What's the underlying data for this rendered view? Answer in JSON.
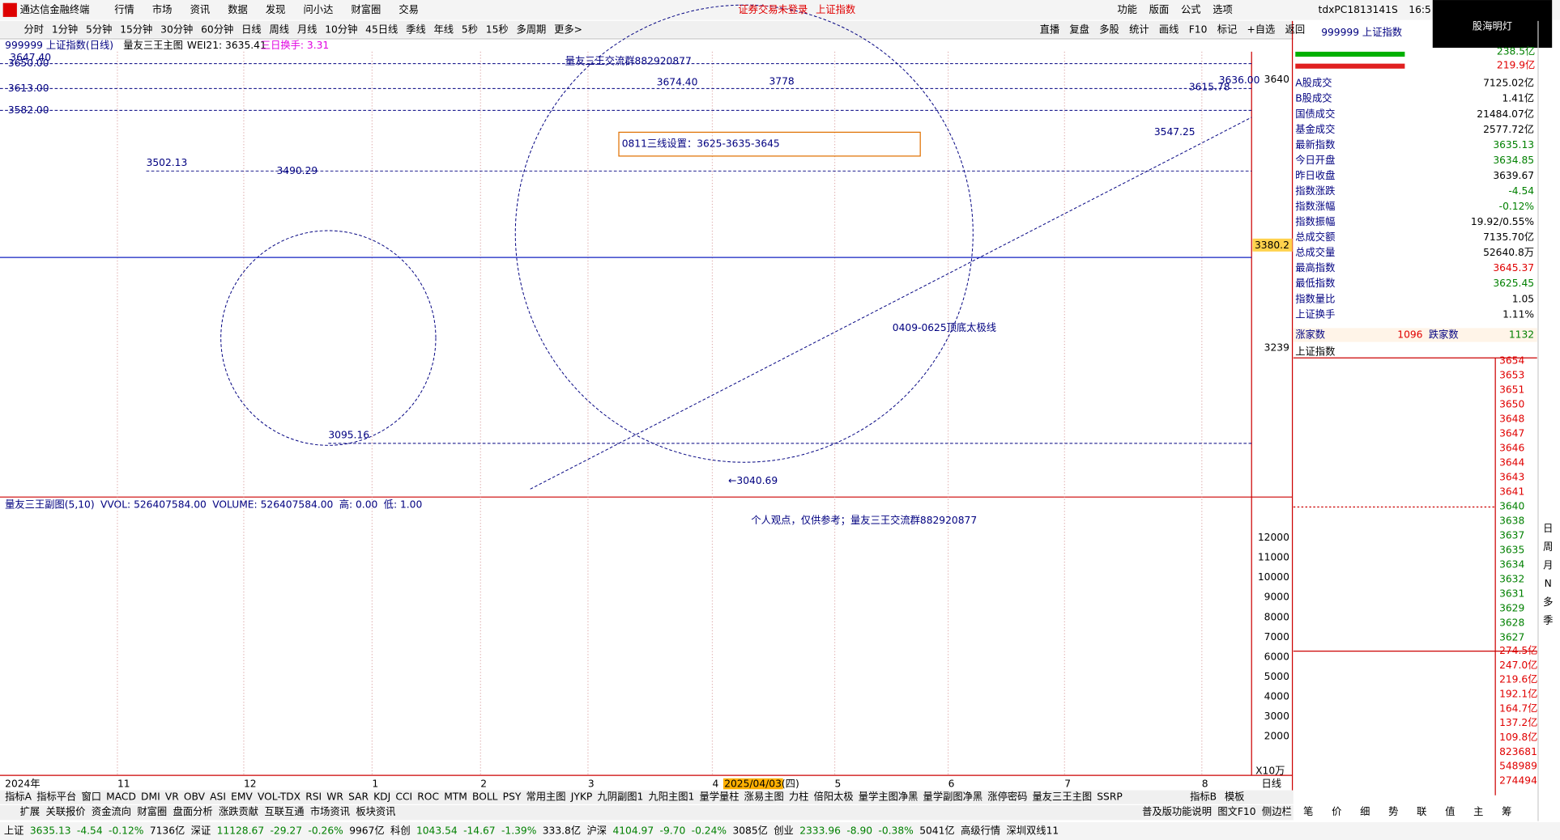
{
  "menu": {
    "app": "通达信金融终端",
    "items": [
      "行情",
      "市场",
      "资讯",
      "数据",
      "发现",
      "问小达",
      "财富圈",
      "交易"
    ],
    "notice": "证券交易未登录",
    "symbol": "上证指数",
    "right": [
      "功能",
      "版面",
      "公式",
      "选项"
    ],
    "pc": "tdxPC1813141S",
    "time": "16:5",
    "logo": "股海明灯"
  },
  "periods": [
    "分时",
    "1分钟",
    "5分钟",
    "15分钟",
    "30分钟",
    "60分钟",
    "日线",
    "周线",
    "月线",
    "10分钟",
    "45日线",
    "季线",
    "年线",
    "5秒",
    "15秒",
    "多周期",
    "更多>"
  ],
  "tools": [
    "直播",
    "复盘",
    "多股",
    "统计",
    "画线",
    "F10",
    "标记",
    "+自选",
    "返回"
  ],
  "chart": {
    "title": "999999 上证指数(日线)",
    "indicator": "量友三王主图",
    "wei": "WEI21: 3635.41",
    "turnover": "三日换手: 3.31",
    "group": "量友三王交流群882920877",
    "big1": "3674.40",
    "big2": "3778",
    "setting": "0811三线设置：3625-3635-3645",
    "taiji": "0409-0625顶底太极线",
    "levels": [
      "3650.00",
      "3613.00",
      "3582.00"
    ],
    "top_left": "3647.40",
    "points": [
      "3502.13",
      "3490.29",
      "3095.16",
      "←3040.69",
      "3547.25",
      "3615.78",
      "3636.00"
    ],
    "price_axis": [
      "3640",
      "3380.2",
      "3239"
    ]
  },
  "volume": {
    "header": [
      "量友三王副图(5,10)",
      "VVOL: 526407584.00",
      "VOLUME: 526407584.00",
      "高: 0.00",
      "低: 1.00"
    ],
    "note": "个人观点，仅供参考；量友三王交流群882920877",
    "axis": [
      "12000",
      "11000",
      "10000",
      "9000",
      "8000",
      "7000",
      "6000",
      "5000",
      "4000",
      "3000",
      "2000"
    ],
    "unit": "X10万"
  },
  "time_axis": [
    "2024年",
    "11",
    "12",
    "1",
    "2",
    "3",
    "4",
    "2025/04/03(四)",
    "5",
    "6",
    "7",
    "8"
  ],
  "time_unit": "日线",
  "tabs": [
    "指标A",
    "指标平台",
    "窗口",
    "MACD",
    "DMI",
    "VR",
    "OBV",
    "ASI",
    "EMV",
    "VOL-TDX",
    "RSI",
    "WR",
    "SAR",
    "KDJ",
    "CCI",
    "ROC",
    "MTM",
    "BOLL",
    "PSY",
    "常用主图",
    "JYKP",
    "九阴副图1",
    "九阳主图1",
    "量学量柱",
    "涨易主图",
    "力柱",
    "倍阳太极",
    "量学主图净黑",
    "量学副图净黑",
    "涨停密码",
    "量友三王主图",
    "SSRP"
  ],
  "tabs_right": [
    "指标B",
    "模板"
  ],
  "ext": [
    "扩展",
    "关联报价",
    "资金流向",
    "财富圈",
    "盘面分析",
    "涨跌贡献",
    "互联互通",
    "市场资讯",
    "板块资讯"
  ],
  "ext_right": [
    "普及版功能说明",
    "图文F10",
    "侧边栏"
  ],
  "status": [
    {
      "t": "上证",
      "c": "#000"
    },
    {
      "t": "3635.13",
      "c": "#008000"
    },
    {
      "t": "-4.54",
      "c": "#008000"
    },
    {
      "t": "-0.12%",
      "c": "#008000"
    },
    {
      "t": "7136亿",
      "c": "#000"
    },
    {
      "t": "深证",
      "c": "#000"
    },
    {
      "t": "11128.67",
      "c": "#008000"
    },
    {
      "t": "-29.27",
      "c": "#008000"
    },
    {
      "t": "-0.26%",
      "c": "#008000"
    },
    {
      "t": "9967亿",
      "c": "#000"
    },
    {
      "t": "科创",
      "c": "#000"
    },
    {
      "t": "1043.54",
      "c": "#008000"
    },
    {
      "t": "-14.67",
      "c": "#008000"
    },
    {
      "t": "-1.39%",
      "c": "#008000"
    },
    {
      "t": "333.8亿",
      "c": "#000"
    },
    {
      "t": "沪深",
      "c": "#000"
    },
    {
      "t": "4104.97",
      "c": "#008000"
    },
    {
      "t": "-9.70",
      "c": "#008000"
    },
    {
      "t": "-0.24%",
      "c": "#008000"
    },
    {
      "t": "3085亿",
      "c": "#000"
    },
    {
      "t": "创业",
      "c": "#000"
    },
    {
      "t": "2333.96",
      "c": "#008000"
    },
    {
      "t": "-8.90",
      "c": "#008000"
    },
    {
      "t": "-0.38%",
      "c": "#008000"
    },
    {
      "t": "5041亿",
      "c": "#000"
    },
    {
      "t": "高级行情",
      "c": "#000"
    },
    {
      "t": "深圳双线11",
      "c": "#000"
    }
  ],
  "quote": {
    "header": "999999 上证指数",
    "top": [
      "238.5亿",
      "219.9亿"
    ],
    "rows": [
      {
        "label": "A股成交",
        "value": "7125.02亿",
        "color": "#000"
      },
      {
        "label": "B股成交",
        "value": "1.41亿",
        "color": "#000"
      },
      {
        "label": "国债成交",
        "value": "21484.07亿",
        "color": "#000"
      },
      {
        "label": "基金成交",
        "value": "2577.72亿",
        "color": "#000"
      },
      {
        "label": "最新指数",
        "value": "3635.13",
        "color": "#008000"
      },
      {
        "label": "今日开盘",
        "value": "3634.85",
        "color": "#008000"
      },
      {
        "label": "昨日收盘",
        "value": "3639.67",
        "color": "#000"
      },
      {
        "label": "指数涨跌",
        "value": "-4.54",
        "color": "#008000"
      },
      {
        "label": "指数涨幅",
        "value": "-0.12%",
        "color": "#008000"
      },
      {
        "label": "指数振幅",
        "value": "19.92/0.55%",
        "color": "#000"
      },
      {
        "label": "总成交额",
        "value": "7135.70亿",
        "color": "#000"
      },
      {
        "label": "总成交量",
        "value": "52640.8万",
        "color": "#000"
      },
      {
        "label": "最高指数",
        "value": "3645.37",
        "color": "#e00000"
      },
      {
        "label": "最低指数",
        "value": "3625.45",
        "color": "#008000"
      },
      {
        "label": "指数量比",
        "value": "1.05",
        "color": "#000"
      },
      {
        "label": "上证换手",
        "value": "1.11%",
        "color": "#000"
      }
    ],
    "up_label": "涨家数",
    "up": "1096",
    "down_label": "跌家数",
    "down": "1132",
    "mini_title": "上证指数",
    "mini_axis": [
      "3654",
      "3653",
      "3651",
      "3650",
      "3648",
      "3647",
      "3646",
      "3644",
      "3643",
      "3641",
      "3640",
      "3638",
      "3637",
      "3635",
      "3634",
      "3632",
      "3631",
      "3629",
      "3628",
      "3627"
    ],
    "mini_vol": [
      "274.5亿",
      "247.0亿",
      "219.6亿",
      "192.1亿",
      "164.7亿",
      "137.2亿",
      "109.8亿",
      "823681",
      "548989",
      "274494"
    ],
    "mini_tabs": [
      "笔",
      "价",
      "细",
      "势",
      "联",
      "值",
      "主",
      "筹"
    ]
  },
  "side": [
    "日",
    "周",
    "月",
    "N",
    "多",
    "季"
  ]
}
